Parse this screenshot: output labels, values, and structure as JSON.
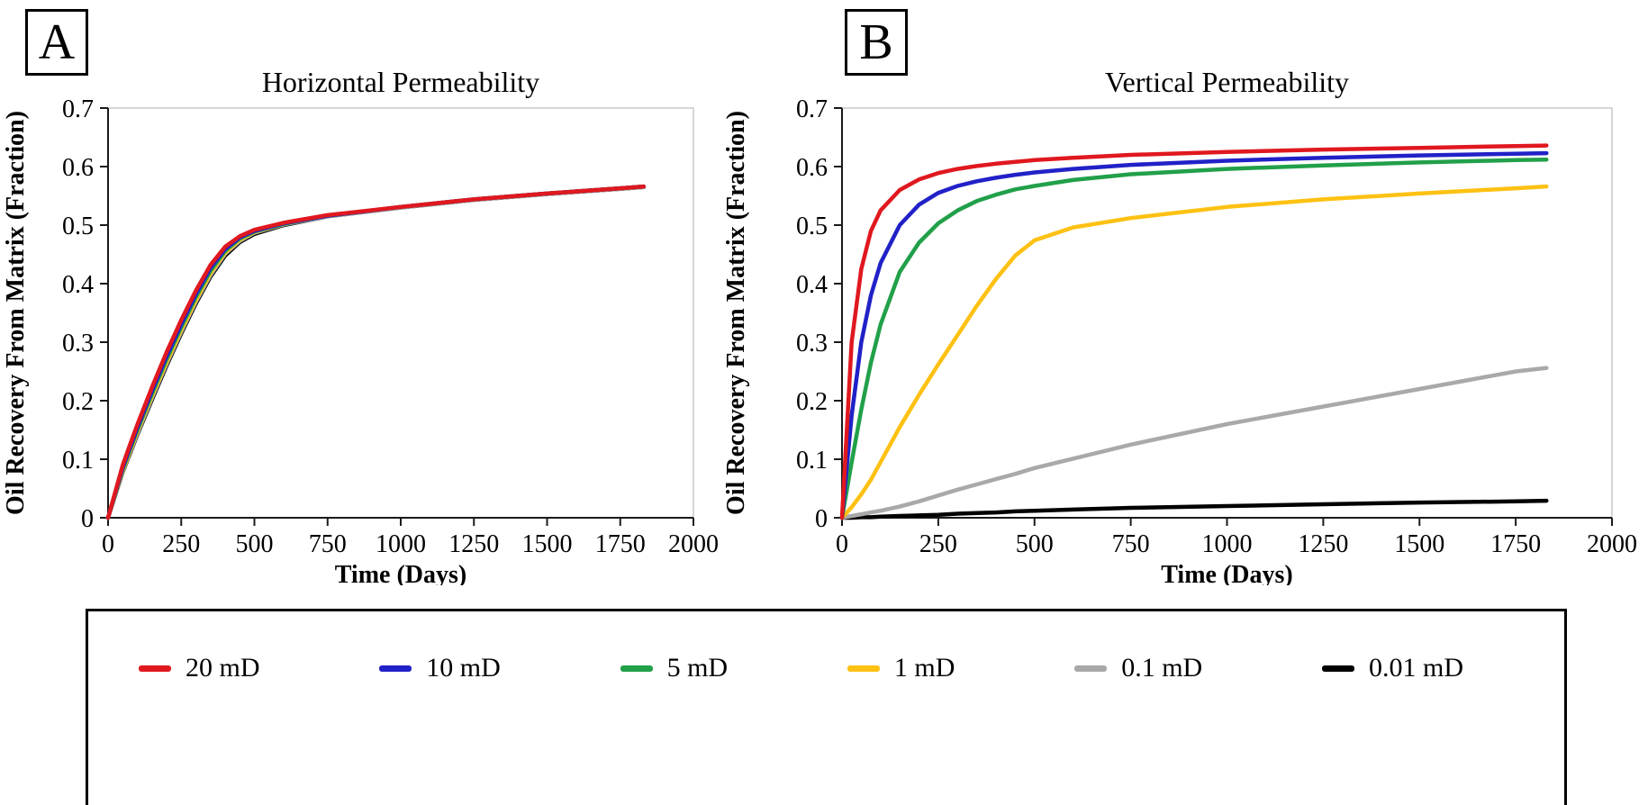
{
  "panel_labels": [
    "A",
    "B"
  ],
  "colors": {
    "red": "#e0181f",
    "blue": "#2121c8",
    "green": "#21a049",
    "yellow": "#fdc113",
    "gray": "#a9a9a9",
    "black": "#000000",
    "axis": "#1a1a1a",
    "plot_border": "#c8c8c8"
  },
  "legend": {
    "items": [
      {
        "label": "20 mD",
        "color": "#e0181f"
      },
      {
        "label": "10 mD",
        "color": "#2121c8"
      },
      {
        "label": "5 mD",
        "color": "#21a049"
      },
      {
        "label": "1 mD",
        "color": "#fdc113"
      },
      {
        "label": "0.1 mD",
        "color": "#a9a9a9"
      },
      {
        "label": "0.01 mD",
        "color": "#000000"
      }
    ]
  },
  "chart_data": [
    {
      "type": "line",
      "panel": "A",
      "title": "Horizontal Permeability",
      "xlabel": "Time (Days)",
      "ylabel": "Oil Recovery From Matrix (Fraction)",
      "xlim": [
        0,
        2000
      ],
      "ylim": [
        0,
        0.7
      ],
      "xticks": [
        0,
        250,
        500,
        750,
        1000,
        1250,
        1500,
        1750,
        2000
      ],
      "yticks": [
        0,
        0.1,
        0.2,
        0.3,
        0.4,
        0.5,
        0.6,
        0.7
      ],
      "grid": false,
      "legend_position": "shared-bottom",
      "x": [
        0,
        25,
        50,
        75,
        100,
        150,
        200,
        250,
        300,
        350,
        400,
        450,
        500,
        600,
        750,
        1000,
        1250,
        1500,
        1750,
        1830
      ],
      "series": [
        {
          "name": "0.01 mD",
          "color": "#000000",
          "values": [
            0,
            0.039,
            0.078,
            0.11,
            0.142,
            0.202,
            0.26,
            0.315,
            0.366,
            0.412,
            0.448,
            0.471,
            0.485,
            0.5,
            0.515,
            0.53,
            0.543,
            0.553,
            0.562,
            0.565
          ]
        },
        {
          "name": "0.1 mD",
          "color": "#a9a9a9",
          "values": [
            0,
            0.04,
            0.079,
            0.112,
            0.144,
            0.205,
            0.263,
            0.318,
            0.369,
            0.415,
            0.451,
            0.473,
            0.487,
            0.501,
            0.515,
            0.53,
            0.543,
            0.553,
            0.562,
            0.565
          ]
        },
        {
          "name": "1 mD",
          "color": "#fdc113",
          "values": [
            0,
            0.041,
            0.081,
            0.114,
            0.147,
            0.208,
            0.266,
            0.321,
            0.372,
            0.418,
            0.453,
            0.475,
            0.488,
            0.502,
            0.516,
            0.531,
            0.544,
            0.554,
            0.563,
            0.566
          ]
        },
        {
          "name": "5 mD",
          "color": "#21a049",
          "values": [
            0,
            0.042,
            0.083,
            0.117,
            0.15,
            0.212,
            0.271,
            0.326,
            0.377,
            0.422,
            0.456,
            0.477,
            0.489,
            0.502,
            0.516,
            0.531,
            0.544,
            0.554,
            0.563,
            0.566
          ]
        },
        {
          "name": "10 mD",
          "color": "#2121c8",
          "values": [
            0,
            0.043,
            0.086,
            0.12,
            0.154,
            0.217,
            0.276,
            0.331,
            0.382,
            0.427,
            0.459,
            0.479,
            0.49,
            0.503,
            0.516,
            0.531,
            0.544,
            0.554,
            0.563,
            0.566
          ]
        },
        {
          "name": "20 mD",
          "color": "#e0181f",
          "values": [
            0,
            0.045,
            0.09,
            0.125,
            0.159,
            0.223,
            0.283,
            0.338,
            0.388,
            0.432,
            0.463,
            0.481,
            0.492,
            0.504,
            0.517,
            0.531,
            0.544,
            0.554,
            0.563,
            0.566
          ]
        }
      ]
    },
    {
      "type": "line",
      "panel": "B",
      "title": "Vertical Permeability",
      "xlabel": "Time (Days)",
      "ylabel": "Oil Recovery From Matrix (Fraction)",
      "xlim": [
        0,
        2000
      ],
      "ylim": [
        0,
        0.7
      ],
      "xticks": [
        0,
        250,
        500,
        750,
        1000,
        1250,
        1500,
        1750,
        2000
      ],
      "yticks": [
        0,
        0.1,
        0.2,
        0.3,
        0.4,
        0.5,
        0.6,
        0.7
      ],
      "grid": false,
      "legend_position": "shared-bottom",
      "x": [
        0,
        25,
        50,
        75,
        100,
        150,
        200,
        250,
        300,
        350,
        400,
        450,
        500,
        600,
        750,
        1000,
        1250,
        1500,
        1750,
        1830
      ],
      "series": [
        {
          "name": "0.01 mD",
          "color": "#000000",
          "values": [
            0,
            0.0,
            0.001,
            0.001,
            0.002,
            0.003,
            0.004,
            0.005,
            0.007,
            0.008,
            0.009,
            0.011,
            0.012,
            0.014,
            0.017,
            0.02,
            0.023,
            0.026,
            0.028,
            0.029
          ]
        },
        {
          "name": "0.1 mD",
          "color": "#a9a9a9",
          "values": [
            0,
            0.003,
            0.006,
            0.009,
            0.012,
            0.019,
            0.028,
            0.038,
            0.048,
            0.057,
            0.066,
            0.075,
            0.085,
            0.101,
            0.125,
            0.16,
            0.19,
            0.22,
            0.25,
            0.256
          ]
        },
        {
          "name": "1 mD",
          "color": "#fdc113",
          "values": [
            0,
            0.018,
            0.04,
            0.065,
            0.095,
            0.155,
            0.21,
            0.262,
            0.312,
            0.362,
            0.408,
            0.448,
            0.474,
            0.496,
            0.512,
            0.531,
            0.544,
            0.554,
            0.563,
            0.566
          ]
        },
        {
          "name": "5 mD",
          "color": "#21a049",
          "values": [
            0,
            0.095,
            0.185,
            0.265,
            0.33,
            0.42,
            0.47,
            0.503,
            0.525,
            0.541,
            0.552,
            0.561,
            0.567,
            0.577,
            0.587,
            0.596,
            0.602,
            0.607,
            0.611,
            0.612
          ]
        },
        {
          "name": "10 mD",
          "color": "#2121c8",
          "values": [
            0,
            0.175,
            0.3,
            0.38,
            0.435,
            0.5,
            0.535,
            0.555,
            0.567,
            0.575,
            0.581,
            0.586,
            0.59,
            0.596,
            0.603,
            0.61,
            0.615,
            0.619,
            0.622,
            0.623
          ]
        },
        {
          "name": "20 mD",
          "color": "#e0181f",
          "values": [
            0,
            0.3,
            0.425,
            0.49,
            0.525,
            0.56,
            0.578,
            0.589,
            0.596,
            0.601,
            0.605,
            0.608,
            0.611,
            0.615,
            0.62,
            0.625,
            0.629,
            0.632,
            0.635,
            0.636
          ]
        }
      ]
    }
  ]
}
